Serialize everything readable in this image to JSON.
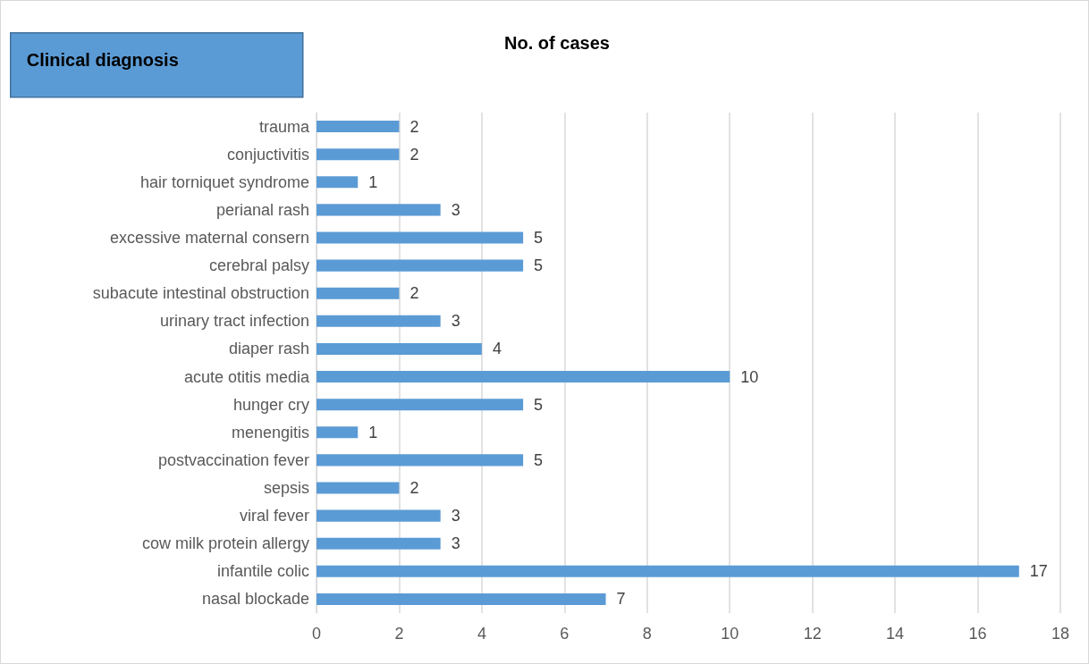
{
  "chart_data": {
    "type": "bar",
    "orientation": "horizontal",
    "title": "No. of cases",
    "ylabel": "Clinical diagnosis",
    "categories": [
      "trauma",
      "conjuctivitis",
      "hair torniquet syndrome",
      "perianal rash",
      "excessive maternal consern",
      "cerebral palsy",
      "subacute intestinal obstruction",
      "urinary tract infection",
      "diaper rash",
      "acute otitis media",
      "hunger cry",
      "menengitis",
      "postvaccination fever",
      "sepsis",
      "viral fever",
      "cow milk protein allergy",
      "infantile colic",
      "nasal blockade"
    ],
    "values": [
      2,
      2,
      1,
      3,
      5,
      5,
      2,
      3,
      4,
      10,
      5,
      1,
      5,
      2,
      3,
      3,
      17,
      7
    ],
    "color": "#5b9bd5",
    "xlim": [
      0,
      18
    ],
    "xticks": [
      0,
      2,
      4,
      6,
      8,
      10,
      12,
      14,
      16,
      18
    ],
    "grid": "x",
    "data_labels": true
  }
}
